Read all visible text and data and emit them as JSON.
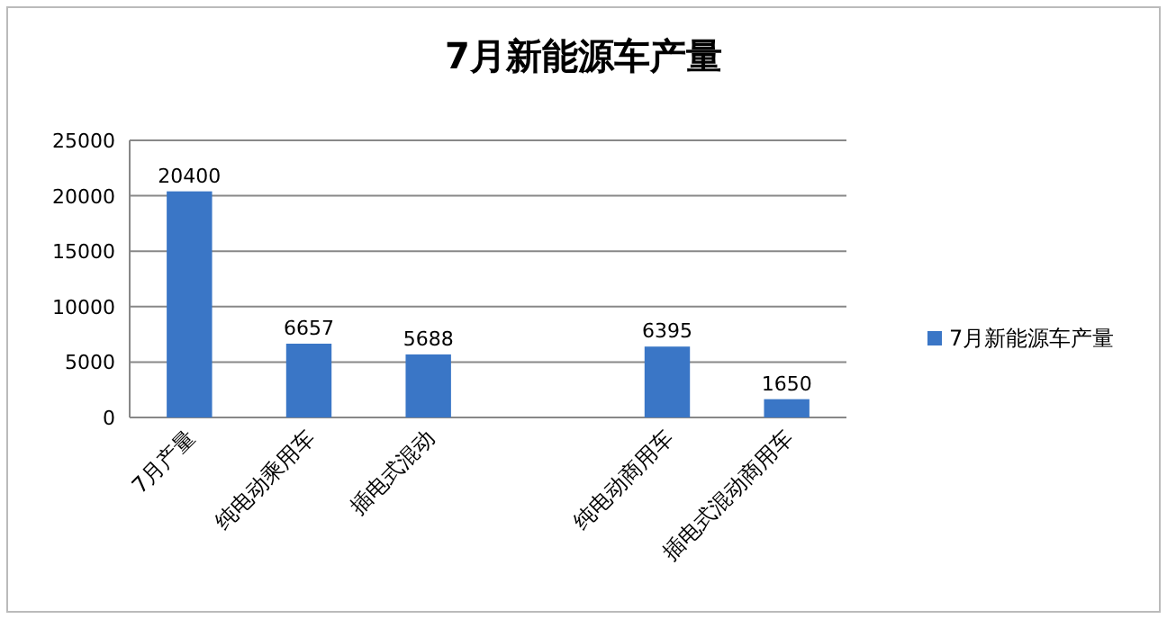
{
  "chart_data": {
    "type": "bar",
    "title": "7月新能源车产量",
    "categories": [
      "7月产量",
      "纯电动乘用车",
      "插电式混动",
      null,
      "纯电动商用车",
      "插电式混动商用车"
    ],
    "series": [
      {
        "name": "7月新能源车产量",
        "color": "#3a76c6",
        "values": [
          20400,
          6657,
          5688,
          null,
          6395,
          1650
        ]
      }
    ],
    "ylim": [
      0,
      25000
    ],
    "yticks": [
      0,
      5000,
      10000,
      15000,
      20000,
      25000
    ],
    "grid": "y",
    "legend": "right",
    "data_labels": true
  }
}
